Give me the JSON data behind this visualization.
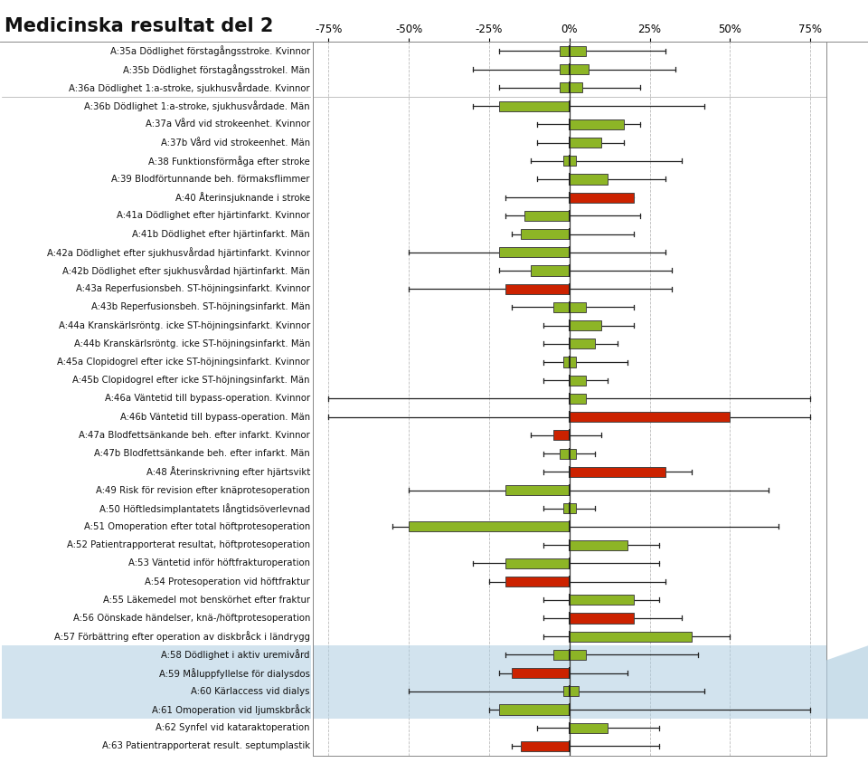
{
  "title": "Medicinska resultat del 2",
  "x_ticks": [
    -75,
    -50,
    -25,
    0,
    25,
    50,
    75
  ],
  "x_labels": [
    "-75%",
    "-50%",
    "-25%",
    "0%",
    "25%",
    "50%",
    "75%"
  ],
  "xlim": [
    -80,
    80
  ],
  "rows": [
    {
      "label": "A:35a Dödlighet förstagångsstroke. Kvinnor",
      "q1": -3,
      "q3": 5,
      "whisker_low": -22,
      "whisker_high": 30,
      "color": "#8db526"
    },
    {
      "label": "A:35b Dödlighet förstagångsstrokel. Män",
      "q1": -3,
      "q3": 6,
      "whisker_low": -30,
      "whisker_high": 33,
      "color": "#8db526"
    },
    {
      "label": "A:36a Dödlighet 1:a-stroke, sjukhusvårdade. Kvinnor",
      "q1": -3,
      "q3": 4,
      "whisker_low": -22,
      "whisker_high": 22,
      "color": "#8db526"
    },
    {
      "label": "A:36b Dödlighet 1:a-stroke, sjukhusvårdade. Män",
      "q1": -22,
      "q3": 0,
      "whisker_low": -30,
      "whisker_high": 42,
      "color": "#8db526"
    },
    {
      "label": "A:37a Vård vid strokeenhet. Kvinnor",
      "q1": 0,
      "q3": 17,
      "whisker_low": -10,
      "whisker_high": 22,
      "color": "#8db526"
    },
    {
      "label": "A:37b Vård vid strokeenhet. Män",
      "q1": 0,
      "q3": 10,
      "whisker_low": -10,
      "whisker_high": 17,
      "color": "#8db526"
    },
    {
      "label": "A:38 Funktionsförmåga efter stroke",
      "q1": -2,
      "q3": 2,
      "whisker_low": -12,
      "whisker_high": 35,
      "color": "#8db526"
    },
    {
      "label": "A:39 Blodförtunnande beh. förmaksflimmer",
      "q1": 0,
      "q3": 12,
      "whisker_low": -10,
      "whisker_high": 30,
      "color": "#8db526"
    },
    {
      "label": "A:40 Återinsjuknande i stroke",
      "q1": 0,
      "q3": 20,
      "whisker_low": -20,
      "whisker_high": 10,
      "color": "#cc2200"
    },
    {
      "label": "A:41a Dödlighet efter hjärtinfarkt. Kvinnor",
      "q1": -14,
      "q3": 0,
      "whisker_low": -20,
      "whisker_high": 22,
      "color": "#8db526"
    },
    {
      "label": "A:41b Dödlighet efter hjärtinfarkt. Män",
      "q1": -15,
      "q3": 0,
      "whisker_low": -18,
      "whisker_high": 20,
      "color": "#8db526"
    },
    {
      "label": "A:42a Dödlighet efter sjukhusvårdad hjärtinfarkt. Kvinnor",
      "q1": -22,
      "q3": 0,
      "whisker_low": -50,
      "whisker_high": 30,
      "color": "#8db526"
    },
    {
      "label": "A:42b Dödlighet efter sjukhusvårdad hjärtinfarkt. Män",
      "q1": -12,
      "q3": 0,
      "whisker_low": -22,
      "whisker_high": 32,
      "color": "#8db526"
    },
    {
      "label": "A:43a Reperfusionsbeh. ST-höjningsinfarkt. Kvinnor",
      "q1": -20,
      "q3": 0,
      "whisker_low": -50,
      "whisker_high": 32,
      "color": "#cc2200"
    },
    {
      "label": "A:43b Reperfusionsbeh. ST-höjningsinfarkt. Män",
      "q1": -5,
      "q3": 5,
      "whisker_low": -18,
      "whisker_high": 20,
      "color": "#8db526"
    },
    {
      "label": "A:44a Kranskärlsröntg. icke ST-höjningsinfarkt. Kvinnor",
      "q1": 0,
      "q3": 10,
      "whisker_low": -8,
      "whisker_high": 20,
      "color": "#8db526"
    },
    {
      "label": "A:44b Kranskärlsröntg. icke ST-höjningsinfarkt. Män",
      "q1": 0,
      "q3": 8,
      "whisker_low": -8,
      "whisker_high": 15,
      "color": "#8db526"
    },
    {
      "label": "A:45a Clopidogrel efter icke ST-höjningsinfarkt. Kvinnor",
      "q1": -2,
      "q3": 2,
      "whisker_low": -8,
      "whisker_high": 18,
      "color": "#8db526"
    },
    {
      "label": "A:45b Clopidogrel efter icke ST-höjningsinfarkt. Män",
      "q1": 0,
      "q3": 5,
      "whisker_low": -8,
      "whisker_high": 12,
      "color": "#8db526"
    },
    {
      "label": "A:46a Väntetid till bypass-operation. Kvinnor",
      "q1": 0,
      "q3": 5,
      "whisker_low": -75,
      "whisker_high": 75,
      "color": "#8db526"
    },
    {
      "label": "A:46b Väntetid till bypass-operation. Män",
      "q1": 0,
      "q3": 50,
      "whisker_low": -75,
      "whisker_high": 75,
      "color": "#cc2200"
    },
    {
      "label": "A:47a Blodfettsänkande beh. efter infarkt. Kvinnor",
      "q1": -5,
      "q3": 0,
      "whisker_low": -12,
      "whisker_high": 10,
      "color": "#cc2200"
    },
    {
      "label": "A:47b Blodfettsänkande beh. efter infarkt. Män",
      "q1": -3,
      "q3": 2,
      "whisker_low": -8,
      "whisker_high": 8,
      "color": "#8db526"
    },
    {
      "label": "A:48 Återinskrivning efter hjärtsvikt",
      "q1": 0,
      "q3": 30,
      "whisker_low": -8,
      "whisker_high": 38,
      "color": "#cc2200"
    },
    {
      "label": "A:49 Risk för revision efter knäprotesoperation",
      "q1": -20,
      "q3": 0,
      "whisker_low": -50,
      "whisker_high": 62,
      "color": "#8db526"
    },
    {
      "label": "A:50 Höftledsimplantatets långtidsöverlevnad",
      "q1": -2,
      "q3": 2,
      "whisker_low": -8,
      "whisker_high": 8,
      "color": "#8db526"
    },
    {
      "label": "A:51 Omoperation efter total höftprotesoperation",
      "q1": -50,
      "q3": 0,
      "whisker_low": -55,
      "whisker_high": 65,
      "color": "#8db526"
    },
    {
      "label": "A:52 Patientrapporterat resultat, höftprotesoperation",
      "q1": 0,
      "q3": 18,
      "whisker_low": -8,
      "whisker_high": 28,
      "color": "#8db526"
    },
    {
      "label": "A:53 Väntetid inför höftfrakturoperation",
      "q1": -20,
      "q3": 0,
      "whisker_low": -30,
      "whisker_high": 28,
      "color": "#8db526"
    },
    {
      "label": "A:54 Protesoperation vid höftfraktur",
      "q1": -20,
      "q3": 0,
      "whisker_low": -25,
      "whisker_high": 30,
      "color": "#cc2200"
    },
    {
      "label": "A:55 Läkemedel mot benskörhet efter fraktur",
      "q1": 0,
      "q3": 20,
      "whisker_low": -8,
      "whisker_high": 28,
      "color": "#8db526"
    },
    {
      "label": "A:56 Oönskade händelser, knä-/höftprotesoperation",
      "q1": 0,
      "q3": 20,
      "whisker_low": -8,
      "whisker_high": 35,
      "color": "#cc2200"
    },
    {
      "label": "A:57 Förbättring efter operation av diskbråck i ländrygg",
      "q1": 0,
      "q3": 38,
      "whisker_low": -8,
      "whisker_high": 50,
      "color": "#8db526"
    },
    {
      "label": "A:58 Dödlighet i aktiv uremivård",
      "q1": -5,
      "q3": 5,
      "whisker_low": -20,
      "whisker_high": 40,
      "color": "#8db526",
      "highlight": true
    },
    {
      "label": "A:59 Måluppfyllelse för dialysdos",
      "q1": -18,
      "q3": 0,
      "whisker_low": -22,
      "whisker_high": 18,
      "color": "#cc2200",
      "highlight": true
    },
    {
      "label": "A:60 Kärlaccess vid dialys",
      "q1": -2,
      "q3": 3,
      "whisker_low": -50,
      "whisker_high": 42,
      "color": "#8db526",
      "highlight": true
    },
    {
      "label": "A:61 Omoperation vid ljumskbråck",
      "q1": -22,
      "q3": 0,
      "whisker_low": -25,
      "whisker_high": 75,
      "color": "#8db526",
      "highlight": true
    },
    {
      "label": "A:62 Synfel vid kataraktoperation",
      "q1": 0,
      "q3": 12,
      "whisker_low": -10,
      "whisker_high": 28,
      "color": "#8db526"
    },
    {
      "label": "A:63 Patientrapporterat result. septumplastik",
      "q1": -15,
      "q3": 0,
      "whisker_low": -18,
      "whisker_high": 28,
      "color": "#cc2200"
    }
  ],
  "highlight_bg": "#aecde0",
  "grid_color": "#bbbbbb",
  "title_fontsize": 15,
  "label_fontsize": 7.3,
  "tick_fontsize": 8.5
}
